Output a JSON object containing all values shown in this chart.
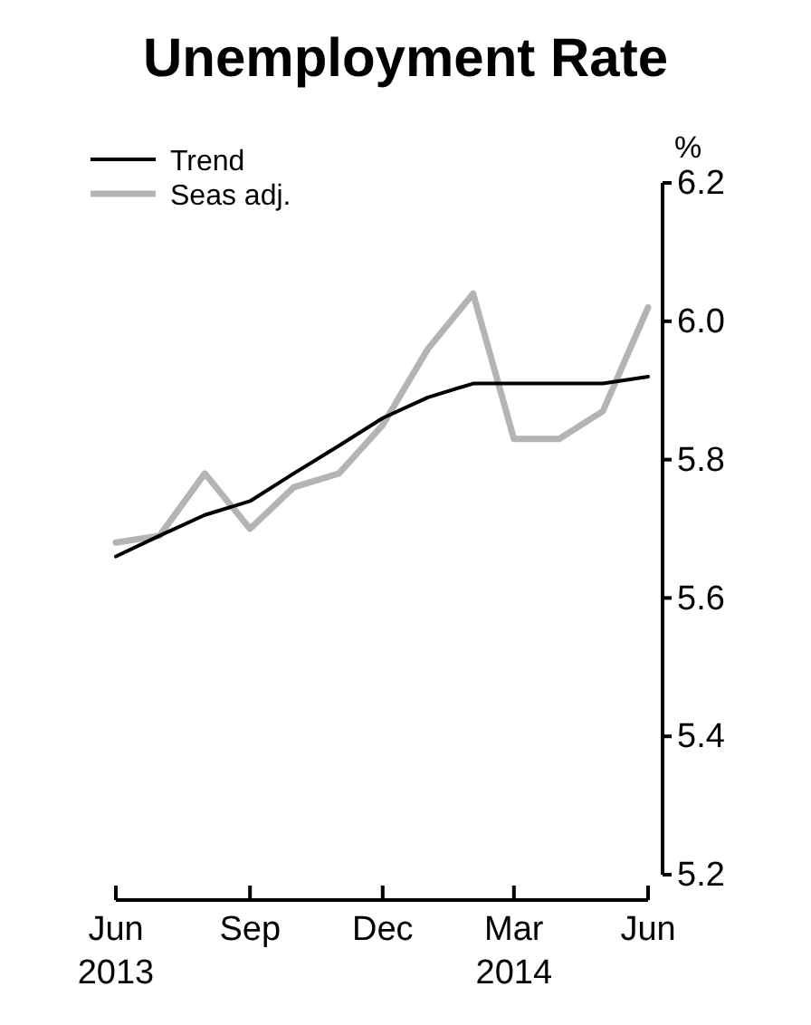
{
  "chart_data": {
    "type": "line",
    "title": "Unemployment Rate",
    "ylabel": "%",
    "x": [
      "2013-06",
      "2013-07",
      "2013-08",
      "2013-09",
      "2013-10",
      "2013-11",
      "2013-12",
      "2014-01",
      "2014-02",
      "2014-03",
      "2014-04",
      "2014-05",
      "2014-06"
    ],
    "series": [
      {
        "name": "Trend",
        "color": "#000000",
        "values": [
          5.66,
          5.69,
          5.72,
          5.74,
          5.78,
          5.82,
          5.86,
          5.89,
          5.91,
          5.91,
          5.91,
          5.91,
          5.92
        ]
      },
      {
        "name": "Seas adj.",
        "color": "#b4b4b4",
        "values": [
          5.68,
          5.69,
          5.78,
          5.7,
          5.76,
          5.78,
          5.85,
          5.96,
          6.04,
          5.83,
          5.83,
          5.87,
          6.02
        ]
      }
    ],
    "xlim": [
      "2013-06",
      "2014-06"
    ],
    "xticks": [
      {
        "value": "2013-06",
        "label": "Jun\n2013"
      },
      {
        "value": "2013-09",
        "label": "Sep"
      },
      {
        "value": "2013-12",
        "label": "Dec"
      },
      {
        "value": "2014-03",
        "label": "Mar\n2014"
      },
      {
        "value": "2014-06",
        "label": "Jun"
      }
    ],
    "ylim": [
      5.2,
      6.2
    ],
    "yticks": [
      5.2,
      5.4,
      5.6,
      5.8,
      {
        "value": 6,
        "label": "6.0"
      },
      6.2
    ],
    "legend": "top left",
    "grid": false,
    "marker": "none",
    "line_style": "solid"
  }
}
